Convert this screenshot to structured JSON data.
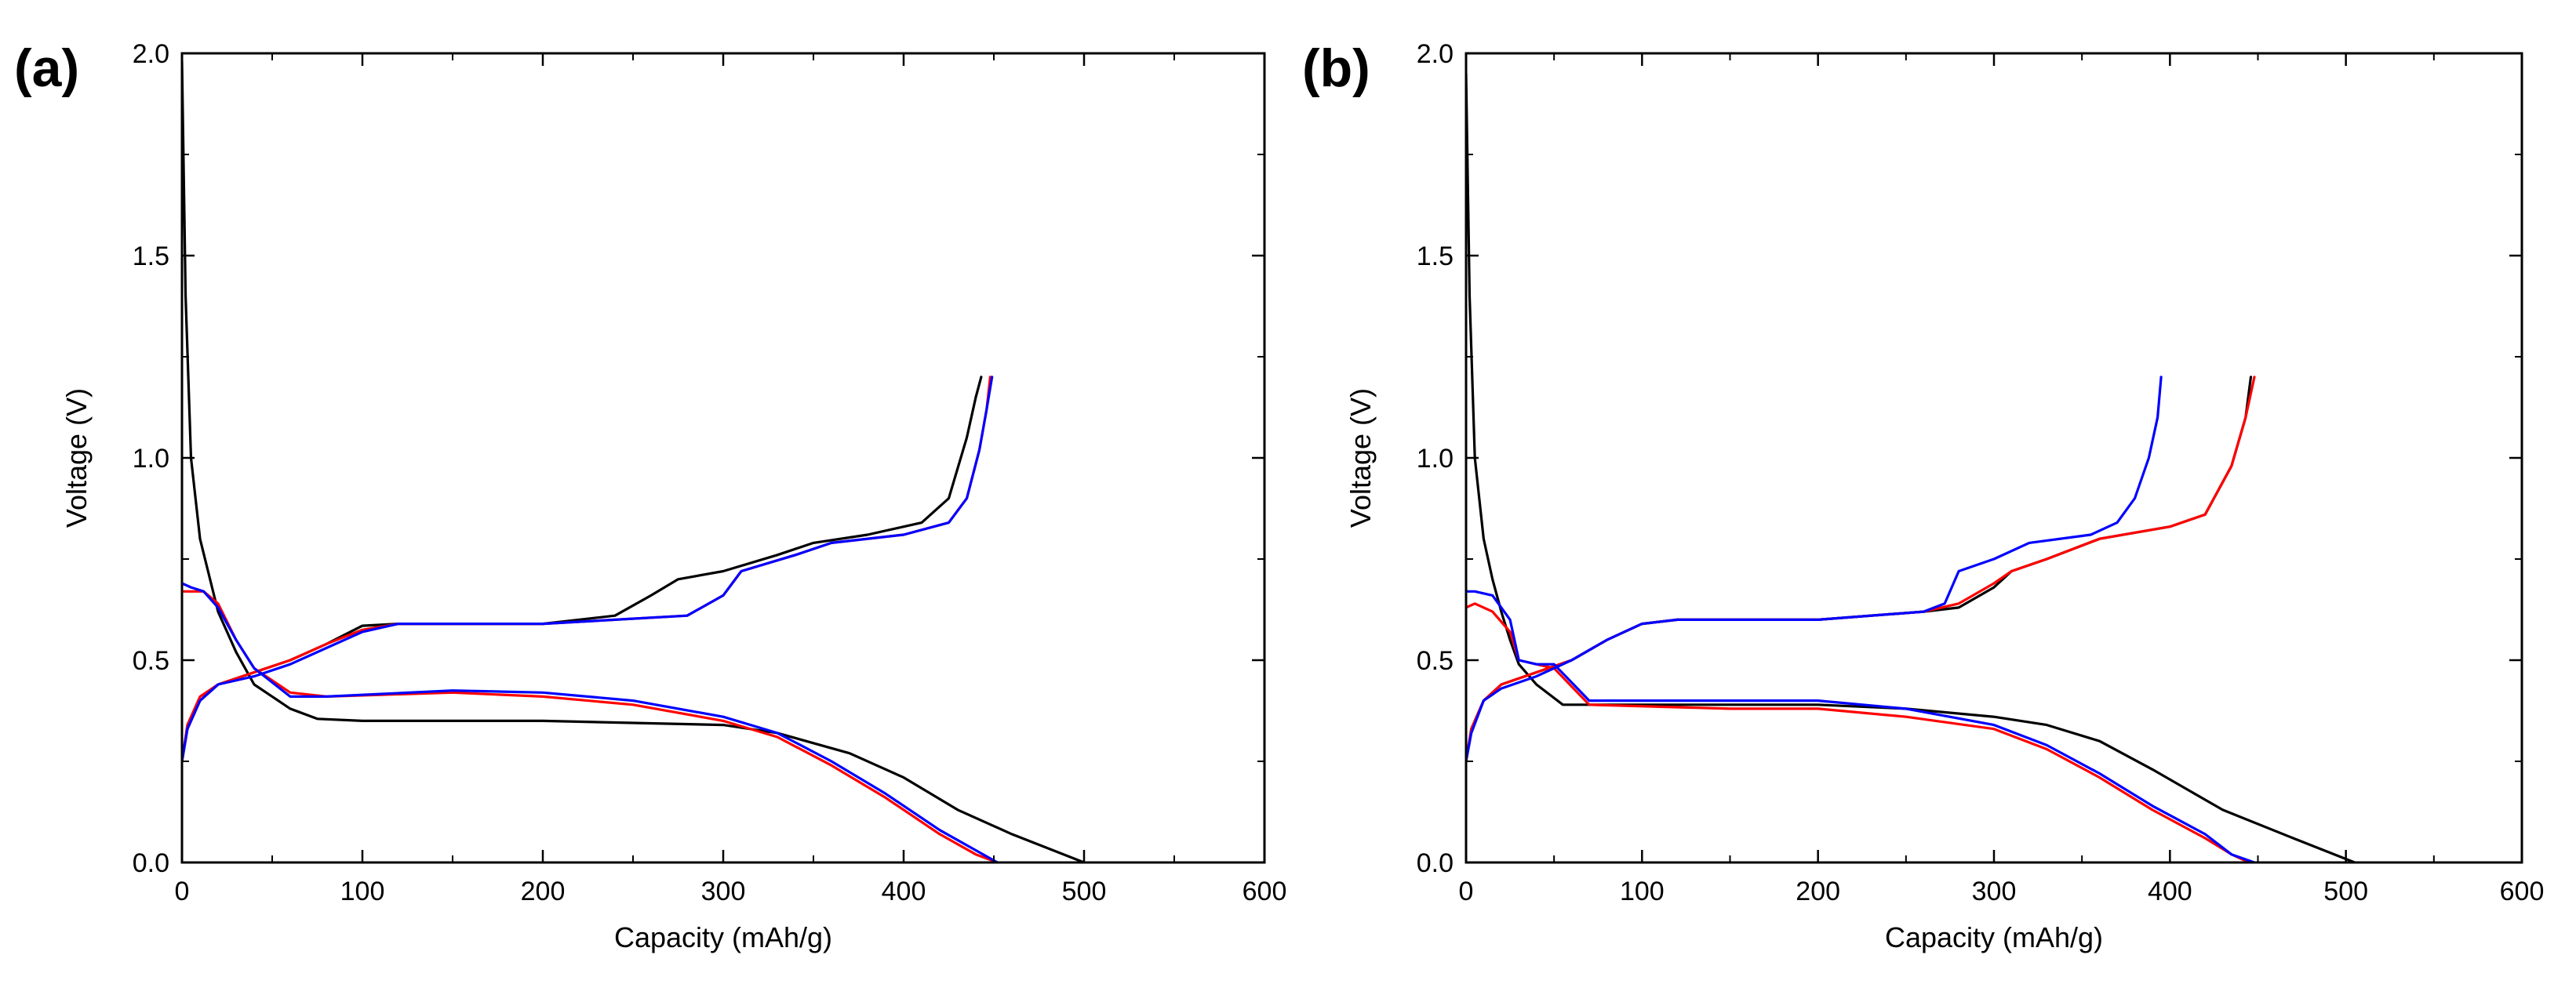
{
  "chart_data": [
    {
      "type": "line",
      "panel_label": "(a)",
      "title": "",
      "xlabel": "Capacity (mAh/g)",
      "ylabel": "Voltage (V)",
      "xlim": [
        0,
        600
      ],
      "ylim": [
        0.0,
        2.0
      ],
      "xticks": [
        "0",
        "100",
        "200",
        "300",
        "400",
        "500",
        "600"
      ],
      "xtick_values": [
        0,
        100,
        200,
        300,
        400,
        500,
        600
      ],
      "yticks": [
        "0.0",
        "0.5",
        "1.0",
        "1.5",
        "2.0"
      ],
      "ytick_values": [
        0.0,
        0.5,
        1.0,
        1.5,
        2.0
      ],
      "grid": false,
      "series": [
        {
          "name": "discharge-black",
          "color": "#000000",
          "x": [
            0,
            2,
            5,
            10,
            20,
            30,
            40,
            50,
            60,
            75,
            100,
            200,
            300,
            330,
            370,
            400,
            430,
            460,
            500
          ],
          "y": [
            1.98,
            1.4,
            1.0,
            0.8,
            0.62,
            0.52,
            0.44,
            0.41,
            0.38,
            0.355,
            0.35,
            0.35,
            0.34,
            0.32,
            0.27,
            0.21,
            0.13,
            0.07,
            0.0
          ]
        },
        {
          "name": "charge-black",
          "color": "#000000",
          "x": [
            0,
            3,
            10,
            20,
            40,
            60,
            80,
            100,
            120,
            200,
            240,
            260,
            275,
            300,
            330,
            350,
            380,
            410,
            425,
            435,
            440,
            443
          ],
          "y": [
            0.25,
            0.33,
            0.4,
            0.44,
            0.47,
            0.5,
            0.54,
            0.585,
            0.59,
            0.59,
            0.61,
            0.66,
            0.7,
            0.72,
            0.76,
            0.79,
            0.81,
            0.84,
            0.9,
            1.05,
            1.15,
            1.2
          ]
        },
        {
          "name": "discharge-red",
          "color": "#ff0000",
          "x": [
            0,
            5,
            12,
            20,
            30,
            40,
            60,
            80,
            150,
            200,
            250,
            300,
            330,
            360,
            390,
            420,
            440,
            452
          ],
          "y": [
            0.67,
            0.67,
            0.67,
            0.64,
            0.55,
            0.48,
            0.42,
            0.41,
            0.42,
            0.41,
            0.39,
            0.35,
            0.31,
            0.24,
            0.16,
            0.07,
            0.02,
            0.0
          ]
        },
        {
          "name": "charge-red",
          "color": "#ff0000",
          "x": [
            0,
            3,
            10,
            20,
            40,
            60,
            80,
            100,
            120,
            200,
            280,
            300,
            310,
            340,
            360,
            400,
            425,
            435,
            442,
            446,
            448
          ],
          "y": [
            0.25,
            0.34,
            0.41,
            0.44,
            0.47,
            0.5,
            0.54,
            0.575,
            0.59,
            0.59,
            0.61,
            0.66,
            0.72,
            0.76,
            0.79,
            0.81,
            0.84,
            0.9,
            1.02,
            1.12,
            1.2
          ]
        },
        {
          "name": "discharge-blue",
          "color": "#0000ff",
          "x": [
            0,
            5,
            12,
            20,
            30,
            40,
            60,
            80,
            150,
            200,
            250,
            300,
            330,
            360,
            390,
            420,
            440,
            452
          ],
          "y": [
            0.69,
            0.68,
            0.67,
            0.63,
            0.55,
            0.48,
            0.41,
            0.41,
            0.425,
            0.42,
            0.4,
            0.36,
            0.32,
            0.25,
            0.17,
            0.08,
            0.03,
            0.0
          ]
        },
        {
          "name": "charge-blue",
          "color": "#0000ff",
          "x": [
            0,
            3,
            10,
            20,
            40,
            60,
            80,
            100,
            120,
            200,
            280,
            300,
            310,
            340,
            360,
            400,
            425,
            435,
            442,
            446,
            449
          ],
          "y": [
            0.25,
            0.33,
            0.4,
            0.44,
            0.46,
            0.49,
            0.53,
            0.57,
            0.59,
            0.59,
            0.61,
            0.66,
            0.72,
            0.76,
            0.79,
            0.81,
            0.84,
            0.9,
            1.02,
            1.12,
            1.2
          ]
        }
      ]
    },
    {
      "type": "line",
      "panel_label": "(b)",
      "title": "",
      "xlabel": "Capacity (mAh/g)",
      "ylabel": "Voltage (V)",
      "xlim": [
        0,
        600
      ],
      "ylim": [
        0.0,
        2.0
      ],
      "xticks": [
        "0",
        "100",
        "200",
        "300",
        "400",
        "500",
        "600"
      ],
      "xtick_values": [
        0,
        100,
        200,
        300,
        400,
        500,
        600
      ],
      "yticks": [
        "0.0",
        "0.5",
        "1.0",
        "1.5",
        "2.0"
      ],
      "ytick_values": [
        0.0,
        0.5,
        1.0,
        1.5,
        2.0
      ],
      "grid": false,
      "series": [
        {
          "name": "discharge-black",
          "color": "#000000",
          "x": [
            0,
            2,
            5,
            10,
            15,
            20,
            25,
            30,
            40,
            55,
            100,
            200,
            250,
            300,
            330,
            360,
            390,
            430,
            470,
            505
          ],
          "y": [
            1.95,
            1.4,
            1.0,
            0.8,
            0.7,
            0.62,
            0.55,
            0.49,
            0.44,
            0.39,
            0.39,
            0.39,
            0.38,
            0.36,
            0.34,
            0.3,
            0.23,
            0.13,
            0.06,
            0.0
          ]
        },
        {
          "name": "charge-black",
          "color": "#000000",
          "x": [
            0,
            3,
            10,
            20,
            40,
            60,
            80,
            100,
            120,
            200,
            260,
            280,
            300,
            310,
            330,
            360,
            400,
            420,
            435,
            443,
            446
          ],
          "y": [
            0.25,
            0.33,
            0.4,
            0.44,
            0.47,
            0.5,
            0.55,
            0.59,
            0.6,
            0.6,
            0.62,
            0.63,
            0.68,
            0.72,
            0.75,
            0.8,
            0.83,
            0.86,
            0.98,
            1.1,
            1.2
          ]
        },
        {
          "name": "discharge-red",
          "color": "#ff0000",
          "x": [
            0,
            5,
            15,
            25,
            30,
            40,
            50,
            70,
            150,
            200,
            250,
            300,
            330,
            360,
            390,
            420,
            435,
            445
          ],
          "y": [
            0.63,
            0.64,
            0.62,
            0.57,
            0.5,
            0.49,
            0.48,
            0.39,
            0.38,
            0.38,
            0.36,
            0.33,
            0.28,
            0.21,
            0.13,
            0.06,
            0.02,
            0.0
          ]
        },
        {
          "name": "charge-red",
          "color": "#ff0000",
          "x": [
            0,
            3,
            10,
            20,
            40,
            60,
            80,
            100,
            120,
            200,
            260,
            280,
            300,
            310,
            330,
            360,
            400,
            420,
            435,
            443,
            448
          ],
          "y": [
            0.25,
            0.33,
            0.4,
            0.44,
            0.47,
            0.5,
            0.55,
            0.59,
            0.6,
            0.6,
            0.62,
            0.64,
            0.69,
            0.72,
            0.75,
            0.8,
            0.83,
            0.86,
            0.98,
            1.1,
            1.2
          ]
        },
        {
          "name": "discharge-blue",
          "color": "#0000ff",
          "x": [
            0,
            5,
            15,
            25,
            30,
            40,
            50,
            70,
            150,
            200,
            250,
            300,
            330,
            360,
            390,
            420,
            435,
            448
          ],
          "y": [
            0.67,
            0.67,
            0.66,
            0.6,
            0.5,
            0.49,
            0.49,
            0.4,
            0.4,
            0.4,
            0.38,
            0.34,
            0.29,
            0.22,
            0.14,
            0.07,
            0.02,
            0.0
          ]
        },
        {
          "name": "charge-blue",
          "color": "#0000ff",
          "x": [
            0,
            3,
            10,
            20,
            40,
            60,
            80,
            100,
            120,
            200,
            260,
            272,
            280,
            300,
            320,
            355,
            370,
            380,
            388,
            393,
            395
          ],
          "y": [
            0.25,
            0.32,
            0.4,
            0.43,
            0.46,
            0.5,
            0.55,
            0.59,
            0.6,
            0.6,
            0.62,
            0.64,
            0.72,
            0.75,
            0.79,
            0.81,
            0.84,
            0.9,
            1.0,
            1.1,
            1.2
          ]
        }
      ]
    }
  ]
}
